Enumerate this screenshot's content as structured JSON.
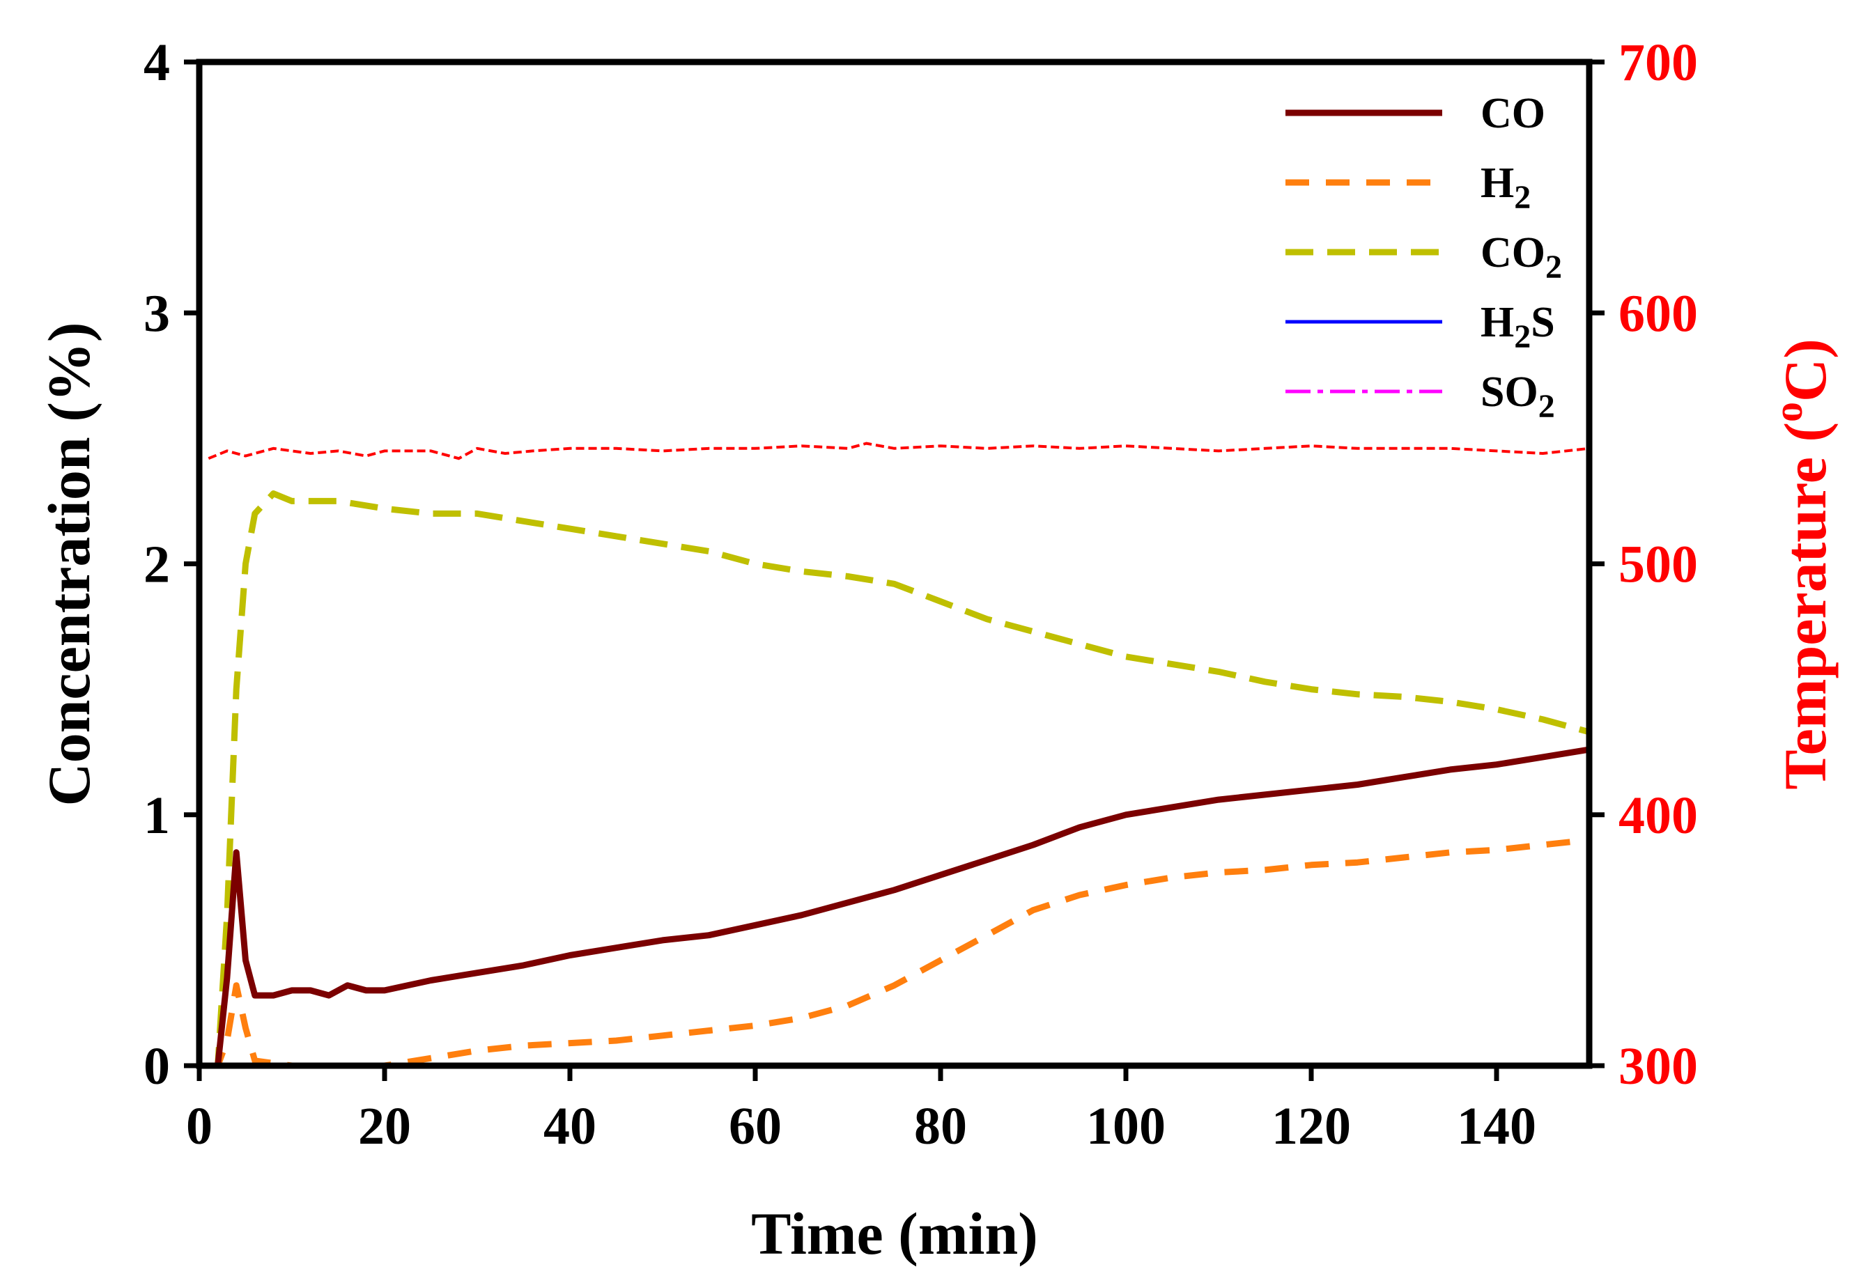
{
  "chart_data": {
    "type": "line",
    "xlabel": "Time (min)",
    "ylabel": "Concentration (%)",
    "y2label_main": "Temperature (",
    "y2label_sup": "o",
    "y2label_end": "C)",
    "xlim": [
      0,
      150
    ],
    "ylim": [
      0,
      4
    ],
    "y2lim": [
      300,
      700
    ],
    "xticks": [
      0,
      20,
      40,
      60,
      80,
      100,
      120,
      140
    ],
    "yticks": [
      0,
      1,
      2,
      3,
      4
    ],
    "y2ticks": [
      300,
      400,
      500,
      600,
      700
    ],
    "legend_position": "top-right",
    "series": [
      {
        "name": "CO",
        "label_main": "CO",
        "label_sub": "",
        "label_tail": "",
        "color": "#7b0000",
        "dash": "none",
        "x": [
          1,
          2,
          3,
          4,
          5,
          6,
          8,
          10,
          12,
          14,
          16,
          18,
          20,
          25,
          30,
          35,
          40,
          45,
          50,
          55,
          60,
          65,
          70,
          75,
          80,
          85,
          90,
          95,
          100,
          105,
          110,
          115,
          120,
          125,
          130,
          135,
          140,
          145,
          150
        ],
        "y": [
          0,
          0,
          0.35,
          0.85,
          0.42,
          0.28,
          0.28,
          0.3,
          0.3,
          0.28,
          0.32,
          0.3,
          0.3,
          0.34,
          0.37,
          0.4,
          0.44,
          0.47,
          0.5,
          0.52,
          0.56,
          0.6,
          0.65,
          0.7,
          0.76,
          0.82,
          0.88,
          0.95,
          1.0,
          1.03,
          1.06,
          1.08,
          1.1,
          1.12,
          1.15,
          1.18,
          1.2,
          1.23,
          1.26
        ]
      },
      {
        "name": "H2",
        "label_main": "H",
        "label_sub": "2",
        "label_tail": "",
        "color": "#ff7f0e",
        "dash": "34 24",
        "x": [
          1,
          2,
          3,
          4,
          5,
          6,
          10,
          15,
          20,
          25,
          30,
          35,
          40,
          45,
          50,
          55,
          60,
          65,
          70,
          75,
          80,
          85,
          90,
          95,
          100,
          105,
          110,
          115,
          120,
          125,
          130,
          135,
          140,
          145,
          150
        ],
        "y": [
          0,
          0,
          0.1,
          0.32,
          0.15,
          0.02,
          0.0,
          0.0,
          0.0,
          0.03,
          0.06,
          0.08,
          0.09,
          0.1,
          0.12,
          0.14,
          0.16,
          0.19,
          0.24,
          0.32,
          0.42,
          0.52,
          0.62,
          0.68,
          0.72,
          0.75,
          0.77,
          0.78,
          0.8,
          0.81,
          0.83,
          0.85,
          0.86,
          0.88,
          0.9
        ]
      },
      {
        "name": "CO2",
        "label_main": "CO",
        "label_sub": "2",
        "label_tail": "",
        "color": "#bfbf00",
        "dash": "40 20",
        "x": [
          1,
          2,
          3,
          4,
          5,
          6,
          8,
          10,
          15,
          20,
          25,
          30,
          35,
          40,
          45,
          50,
          55,
          60,
          65,
          70,
          75,
          80,
          85,
          90,
          95,
          100,
          105,
          110,
          115,
          120,
          125,
          130,
          135,
          140,
          145,
          150
        ],
        "y": [
          0,
          0,
          0.6,
          1.5,
          2.0,
          2.2,
          2.28,
          2.25,
          2.25,
          2.22,
          2.2,
          2.2,
          2.17,
          2.14,
          2.11,
          2.08,
          2.05,
          2.0,
          1.97,
          1.95,
          1.92,
          1.85,
          1.78,
          1.73,
          1.68,
          1.63,
          1.6,
          1.57,
          1.53,
          1.5,
          1.48,
          1.47,
          1.45,
          1.42,
          1.38,
          1.33
        ]
      },
      {
        "name": "H2S",
        "label_main": "H",
        "label_sub": "2",
        "label_tail": "S",
        "color": "#0000ff",
        "dash": "none",
        "x": [
          1,
          150
        ],
        "y": [
          0,
          0
        ]
      },
      {
        "name": "SO2",
        "label_main": "SO",
        "label_sub": "2",
        "label_tail": "",
        "color": "#ff00ff",
        "dash": "36 10 8 10",
        "x": [
          1,
          150
        ],
        "y": [
          0,
          0
        ]
      }
    ],
    "temperature_series": {
      "name": "Temperature",
      "color": "#ff0000",
      "dash": "12 6",
      "axis": "right",
      "x": [
        1,
        3,
        5,
        8,
        12,
        15,
        18,
        20,
        25,
        28,
        30,
        33,
        36,
        40,
        45,
        50,
        55,
        60,
        65,
        70,
        72,
        75,
        80,
        85,
        90,
        95,
        100,
        105,
        110,
        115,
        120,
        125,
        130,
        135,
        140,
        145,
        150
      ],
      "y": [
        542,
        545,
        543,
        546,
        544,
        545,
        543,
        545,
        545,
        542,
        546,
        544,
        545,
        546,
        546,
        545,
        546,
        546,
        547,
        546,
        548,
        546,
        547,
        546,
        547,
        546,
        547,
        546,
        545,
        546,
        547,
        546,
        546,
        546,
        545,
        544,
        546
      ]
    }
  }
}
